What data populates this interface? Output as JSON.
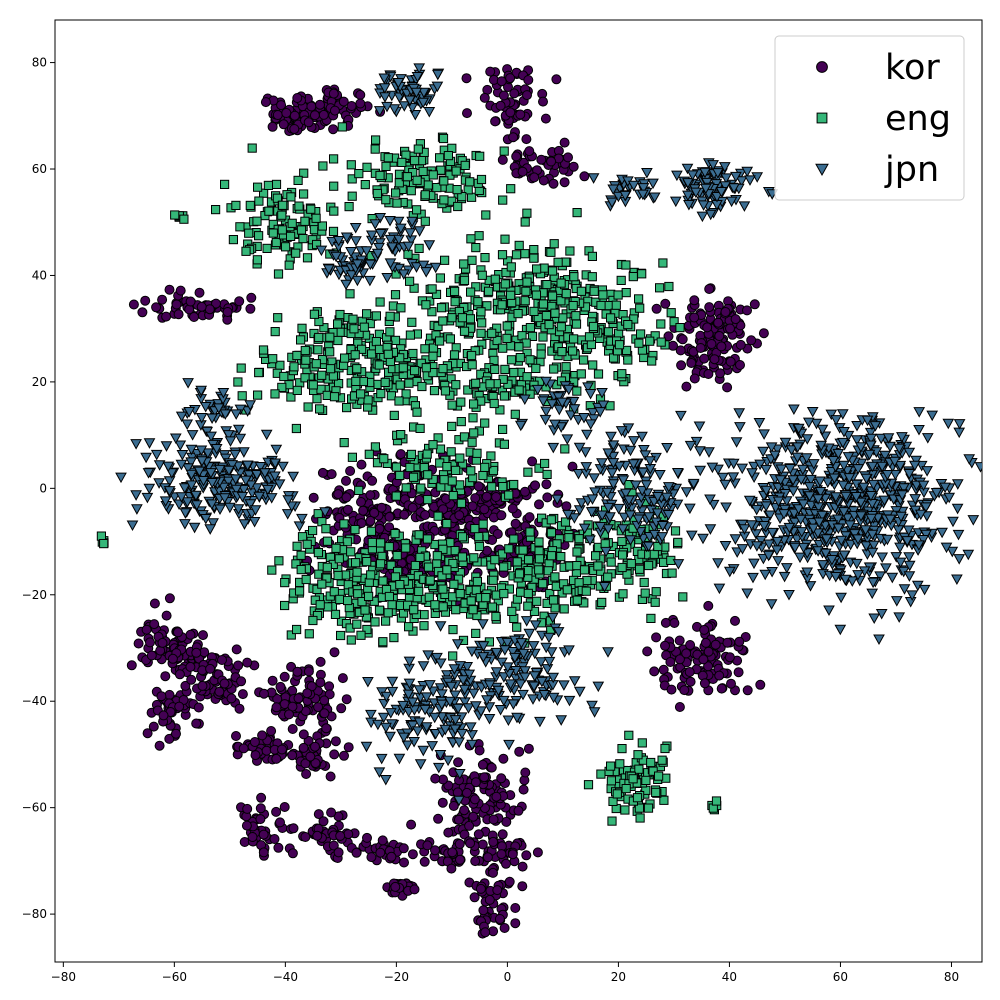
{
  "chart_data": {
    "type": "scatter",
    "title": "",
    "xlabel": "",
    "ylabel": "",
    "xlim": [
      -81.5,
      85.5
    ],
    "ylim": [
      -89,
      88
    ],
    "xticks": [
      -80,
      -60,
      -40,
      -20,
      0,
      20,
      40,
      60,
      80
    ],
    "yticks": [
      -80,
      -60,
      -40,
      -20,
      0,
      20,
      40,
      60,
      80
    ],
    "grid": false,
    "legend": {
      "placement": "top-right"
    },
    "series": [
      {
        "name": "kor",
        "marker": "circle",
        "color": "#440154",
        "clusters": [
          {
            "center": [
              -38,
              70
            ],
            "spread": [
              3.5,
              2
            ],
            "count": 70
          },
          {
            "center": [
              -30,
              72
            ],
            "spread": [
              3,
              1.5
            ],
            "count": 40
          },
          {
            "center": [
              0,
              73
            ],
            "spread": [
              3,
              3
            ],
            "count": 60
          },
          {
            "center": [
              6,
              61
            ],
            "spread": [
              4,
              2
            ],
            "count": 45
          },
          {
            "center": [
              -56,
              34
            ],
            "spread": [
              4.5,
              1.2
            ],
            "count": 55
          },
          {
            "center": [
              36,
              27
            ],
            "spread": [
              3.5,
              4
            ],
            "count": 110
          },
          {
            "center": [
              40,
              32
            ],
            "spread": [
              2,
              2
            ],
            "count": 30
          },
          {
            "center": [
              -25,
              -5
            ],
            "spread": [
              5,
              5
            ],
            "count": 120
          },
          {
            "center": [
              -8,
              -4
            ],
            "spread": [
              8,
              4
            ],
            "count": 220
          },
          {
            "center": [
              -18,
              -15
            ],
            "spread": [
              4,
              3
            ],
            "count": 80
          },
          {
            "center": [
              2,
              -12
            ],
            "spread": [
              4,
              3
            ],
            "count": 60
          },
          {
            "center": [
              -60,
              -30
            ],
            "spread": [
              3.5,
              3
            ],
            "count": 90
          },
          {
            "center": [
              -60,
              -42
            ],
            "spread": [
              2,
              2.5
            ],
            "count": 50
          },
          {
            "center": [
              -52,
              -36
            ],
            "spread": [
              3,
              2.5
            ],
            "count": 60
          },
          {
            "center": [
              -37,
              -40
            ],
            "spread": [
              3.5,
              3.5
            ],
            "count": 90
          },
          {
            "center": [
              -44,
              -49
            ],
            "spread": [
              3,
              1.2
            ],
            "count": 40
          },
          {
            "center": [
              -35,
              -50
            ],
            "spread": [
              3,
              2
            ],
            "count": 40
          },
          {
            "center": [
              35,
              -32
            ],
            "spread": [
              4,
              4
            ],
            "count": 110
          },
          {
            "center": [
              -5,
              -58
            ],
            "spread": [
              4.5,
              4
            ],
            "count": 110
          },
          {
            "center": [
              -2,
              -68
            ],
            "spread": [
              4,
              2
            ],
            "count": 40
          },
          {
            "center": [
              -2,
              -77
            ],
            "spread": [
              2.5,
              3
            ],
            "count": 50
          },
          {
            "center": [
              -45,
              -64
            ],
            "spread": [
              2,
              2.5
            ],
            "count": 40
          },
          {
            "center": [
              -33,
              -66
            ],
            "spread": [
              3,
              2.5
            ],
            "count": 50
          },
          {
            "center": [
              -22,
              -68
            ],
            "spread": [
              3,
              1.2
            ],
            "count": 30
          },
          {
            "center": [
              -10,
              -68
            ],
            "spread": [
              3,
              1.2
            ],
            "count": 30
          },
          {
            "center": [
              -19,
              -75
            ],
            "spread": [
              1.5,
              1
            ],
            "count": 20
          }
        ]
      },
      {
        "name": "eng",
        "marker": "square",
        "color": "#35b779",
        "clusters": [
          {
            "center": [
              -40,
              50
            ],
            "spread": [
              5,
              4
            ],
            "count": 110
          },
          {
            "center": [
              -15,
              58
            ],
            "spread": [
              7,
              4
            ],
            "count": 130
          },
          {
            "center": [
              5,
              35
            ],
            "spread": [
              11,
              5
            ],
            "count": 300
          },
          {
            "center": [
              -25,
              23
            ],
            "spread": [
              10,
              5
            ],
            "count": 280
          },
          {
            "center": [
              0,
              20
            ],
            "spread": [
              8,
              3
            ],
            "count": 90
          },
          {
            "center": [
              17,
              28
            ],
            "spread": [
              6,
              4
            ],
            "count": 90
          },
          {
            "center": [
              -8,
              4
            ],
            "spread": [
              8,
              3
            ],
            "count": 100
          },
          {
            "center": [
              -30,
              -18
            ],
            "spread": [
              6,
              5
            ],
            "count": 150
          },
          {
            "center": [
              -8,
              -18
            ],
            "spread": [
              10,
              5
            ],
            "count": 250
          },
          {
            "center": [
              10,
              -15
            ],
            "spread": [
              5,
              5
            ],
            "count": 100
          },
          {
            "center": [
              23,
              -12
            ],
            "spread": [
              4,
              5
            ],
            "count": 100
          },
          {
            "center": [
              23,
              -55
            ],
            "spread": [
              3.5,
              3.5
            ],
            "count": 90
          },
          {
            "center": [
              -59,
              51
            ],
            "spread": [
              0.5,
              0.4
            ],
            "count": 6
          },
          {
            "center": [
              -73,
              -10
            ],
            "spread": [
              0.4,
              0.4
            ],
            "count": 5
          },
          {
            "center": [
              37,
              -60
            ],
            "spread": [
              0.4,
              0.4
            ],
            "count": 5
          }
        ]
      },
      {
        "name": "jpn",
        "marker": "triangle-down",
        "color": "#3b6d91",
        "clusters": [
          {
            "center": [
              -17,
              75
            ],
            "spread": [
              3,
              2
            ],
            "count": 60
          },
          {
            "center": [
              37,
              57
            ],
            "spread": [
              4,
              2.5
            ],
            "count": 90
          },
          {
            "center": [
              22,
              56
            ],
            "spread": [
              3,
              1.5
            ],
            "count": 30
          },
          {
            "center": [
              -28,
              43
            ],
            "spread": [
              3,
              2.5
            ],
            "count": 50
          },
          {
            "center": [
              -19,
              46
            ],
            "spread": [
              3,
              2.5
            ],
            "count": 40
          },
          {
            "center": [
              -53,
              14
            ],
            "spread": [
              3,
              2
            ],
            "count": 40
          },
          {
            "center": [
              -52,
              1
            ],
            "spread": [
              7,
              4
            ],
            "count": 230
          },
          {
            "center": [
              60,
              -3
            ],
            "spread": [
              10,
              8
            ],
            "count": 700
          },
          {
            "center": [
              23,
              0
            ],
            "spread": [
              5,
              6
            ],
            "count": 150
          },
          {
            "center": [
              -14,
              -42
            ],
            "spread": [
              5,
              5
            ],
            "count": 130
          },
          {
            "center": [
              2,
              -35
            ],
            "spread": [
              6,
              5
            ],
            "count": 140
          },
          {
            "center": [
              10,
              15
            ],
            "spread": [
              4,
              3
            ],
            "count": 40
          }
        ]
      }
    ]
  }
}
